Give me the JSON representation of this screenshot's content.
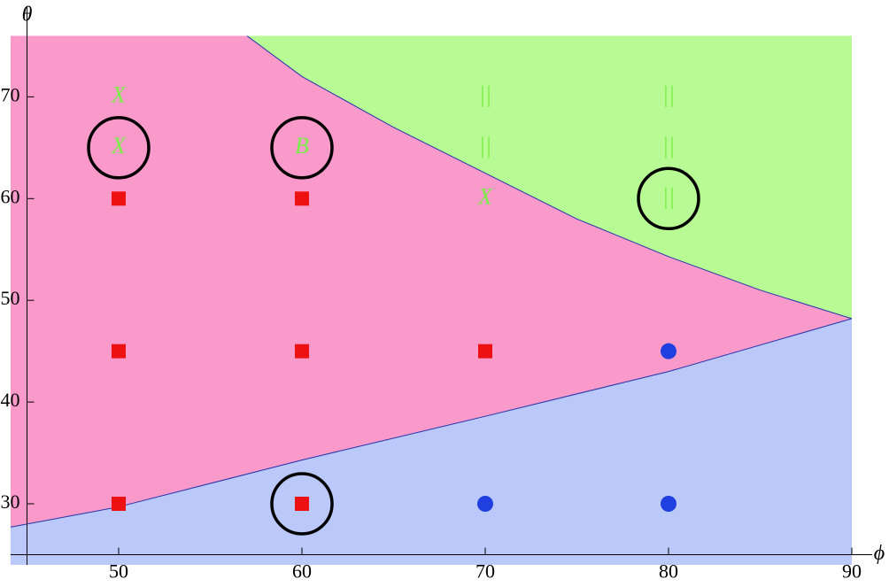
{
  "chart_data": {
    "type": "scatter",
    "x_label": "ϕ",
    "y_label": "θ",
    "xlim": [
      44.1,
      90
    ],
    "ylim": [
      24,
      76
    ],
    "xticks": [
      50,
      60,
      70,
      80,
      90
    ],
    "yticks": [
      30,
      40,
      50,
      60,
      70
    ],
    "axes_origin": [
      45,
      25
    ],
    "background": "#fa9acb",
    "boundaries": [
      {
        "x": [
          57,
          60,
          65,
          70,
          75,
          80,
          85,
          90
        ],
        "y": [
          76,
          72,
          67,
          62.5,
          58,
          54.3,
          51,
          48.2
        ],
        "fill_above": "#b8fb94"
      },
      {
        "x": [
          44.1,
          50,
          60,
          70,
          80,
          90
        ],
        "y": [
          27.7,
          29.7,
          34.3,
          38.6,
          43,
          48.2
        ],
        "fill_below": "#bac8fa"
      }
    ],
    "series": [
      {
        "marker": "square",
        "color": "#ee1111",
        "x": [
          50,
          60,
          50,
          60,
          70,
          50,
          60
        ],
        "y": [
          60,
          60,
          45,
          45,
          45,
          30,
          30
        ]
      },
      {
        "marker": "circle",
        "color": "#1f3fe0",
        "x": [
          80,
          70,
          80
        ],
        "y": [
          45,
          30,
          30
        ]
      }
    ],
    "annotations": [
      {
        "text": "X",
        "x": 50,
        "y": 70,
        "color": "#77ee44"
      },
      {
        "text": "X",
        "x": 50,
        "y": 65,
        "color": "#77ee44"
      },
      {
        "text": "B",
        "x": 60,
        "y": 65,
        "color": "#77ee44"
      },
      {
        "text": "X",
        "x": 70,
        "y": 60,
        "color": "#77ee44"
      },
      {
        "text": "||",
        "x": 70,
        "y": 70,
        "color": "#77ee44"
      },
      {
        "text": "||",
        "x": 70,
        "y": 65,
        "color": "#77ee44"
      },
      {
        "text": "||",
        "x": 80,
        "y": 70,
        "color": "#77ee44"
      },
      {
        "text": "||",
        "x": 80,
        "y": 65,
        "color": "#77ee44"
      },
      {
        "text": "||",
        "x": 80,
        "y": 60,
        "color": "#77ee44"
      }
    ],
    "highlights": {
      "x": [
        50,
        60,
        80,
        60
      ],
      "y": [
        65,
        65,
        60,
        30
      ]
    }
  }
}
